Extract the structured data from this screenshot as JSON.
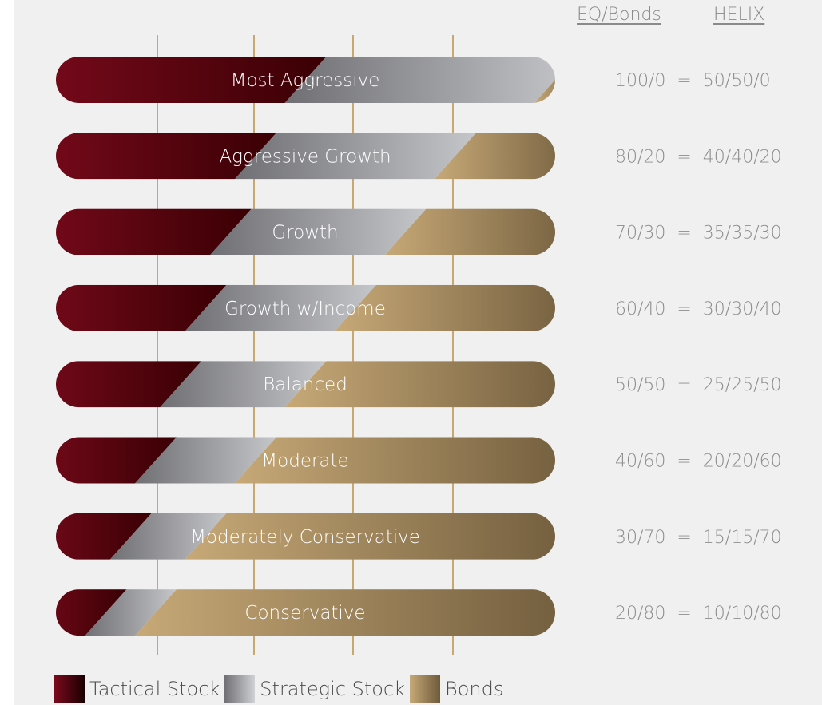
{
  "header": {
    "eq_bonds": "EQ/Bonds",
    "helix": "HELIX"
  },
  "chart_data": {
    "type": "bar",
    "stacked": true,
    "orientation": "horizontal",
    "categories": [
      "Most Aggressive",
      "Aggressive Growth",
      "Growth",
      "Growth w/Income",
      "Balanced",
      "Moderate",
      "Moderately Conservative",
      "Conservative"
    ],
    "series": [
      {
        "name": "Tactical Stock",
        "values": [
          50,
          40,
          35,
          30,
          25,
          20,
          15,
          10
        ]
      },
      {
        "name": "Strategic Stock",
        "values": [
          50,
          40,
          35,
          30,
          25,
          20,
          15,
          10
        ]
      },
      {
        "name": "Bonds",
        "values": [
          0,
          20,
          30,
          40,
          50,
          60,
          70,
          80
        ]
      }
    ],
    "annotations": [
      "100/0  =  50/50/0",
      "80/20  =  40/40/20",
      "70/30  =  35/35/30",
      "60/40  =  30/30/40",
      "50/50  =  25/25/50",
      "40/60  =  20/20/60",
      "30/70  =  15/15/70",
      "20/80  =  10/10/80"
    ],
    "grid": true,
    "legend_position": "bottom-left",
    "colors": {
      "tactical": [
        "#7a0a1c",
        "#3a0004"
      ],
      "strategic": [
        "#6f6f74",
        "#c5c6c9"
      ],
      "bonds": [
        "#c7a977",
        "#6e5a3b"
      ],
      "grid": "#c8a870",
      "label_text": "#ffffff",
      "annotation_text": "#8c8c8c"
    }
  },
  "legend": [
    {
      "label": "Tactical Stock"
    },
    {
      "label": "Strategic Stock"
    },
    {
      "label": "Bonds"
    }
  ]
}
